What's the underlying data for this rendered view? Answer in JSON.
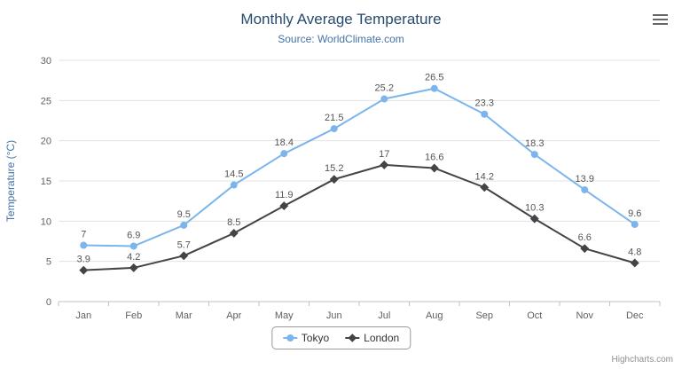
{
  "chart_data": {
    "type": "line",
    "title": "Monthly Average Temperature",
    "subtitle": "Source: WorldClimate.com",
    "categories": [
      "Jan",
      "Feb",
      "Mar",
      "Apr",
      "May",
      "Jun",
      "Jul",
      "Aug",
      "Sep",
      "Oct",
      "Nov",
      "Dec"
    ],
    "series": [
      {
        "name": "Tokyo",
        "marker": "circle",
        "color": "#7cb5ec",
        "values": [
          7,
          6.9,
          9.5,
          14.5,
          18.4,
          21.5,
          25.2,
          26.5,
          23.3,
          18.3,
          13.9,
          9.6
        ]
      },
      {
        "name": "London",
        "marker": "diamond",
        "color": "#434348",
        "values": [
          3.9,
          4.2,
          5.7,
          8.5,
          11.9,
          15.2,
          17,
          16.6,
          14.2,
          10.3,
          6.6,
          4.8
        ]
      }
    ],
    "xlabel": "",
    "ylabel": "Temperature (°C)",
    "ylim": [
      0,
      30
    ],
    "tick_interval": 5,
    "grid": true,
    "legend_position": "bottom",
    "colors": {
      "title": "#274b6d",
      "subtitle": "#4572a7",
      "yaxis_title": "#4572a7",
      "axis_label": "#606060",
      "grid": "#e3e3e3",
      "axis_line": "#c0c0c0",
      "data_label": "#545454",
      "legend_border": "#999999",
      "credits": "#909090"
    }
  },
  "credits": "Highcharts.com",
  "menu": {
    "icon": "hamburger"
  }
}
